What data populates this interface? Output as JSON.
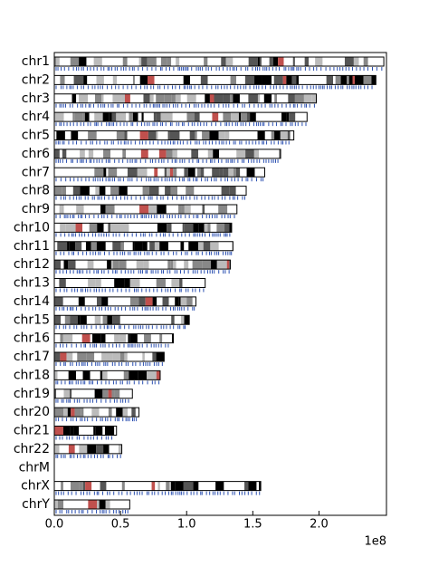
{
  "chart_data": {
    "type": "ideogram",
    "categories": [
      "chr1",
      "chr2",
      "chr3",
      "chr4",
      "chr5",
      "chr6",
      "chr7",
      "chr8",
      "chr9",
      "chr10",
      "chr11",
      "chr12",
      "chr13",
      "chr14",
      "chr15",
      "chr16",
      "chr17",
      "chr18",
      "chr19",
      "chr20",
      "chr21",
      "chr22",
      "chrM",
      "chrX",
      "chrY"
    ],
    "values": [
      2.49,
      2.43,
      1.98,
      1.91,
      1.81,
      1.71,
      1.59,
      1.45,
      1.38,
      1.34,
      1.35,
      1.33,
      1.14,
      1.07,
      1.02,
      0.9,
      0.83,
      0.8,
      0.59,
      0.64,
      0.47,
      0.51,
      0.00017,
      1.56,
      0.57
    ],
    "xlim": [
      0,
      2.51
    ],
    "xticks": [
      {
        "value": 0,
        "label": "0.0"
      },
      {
        "value": 0.5,
        "label": "0.5"
      },
      {
        "value": 1,
        "label": "1.0"
      },
      {
        "value": 1.5,
        "label": "1.5"
      },
      {
        "value": 2,
        "label": "2.0"
      }
    ],
    "x_offset_label": "1e8",
    "color": "#ffffff"
  }
}
